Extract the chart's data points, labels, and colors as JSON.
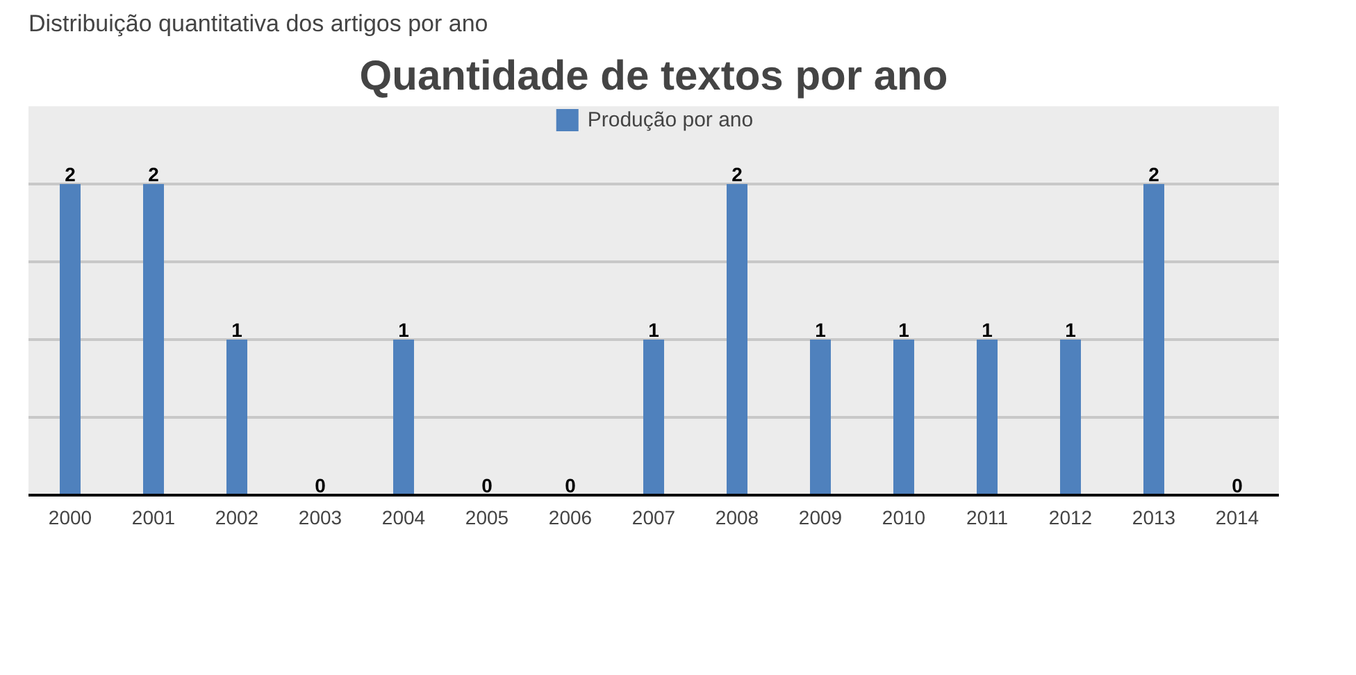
{
  "chart_data": {
    "type": "bar",
    "title": "Quantidade de textos por ano",
    "annotations": [
      "Distribuição quantitativa dos artigos por ano"
    ],
    "categories": [
      "2000",
      "2001",
      "2002",
      "2003",
      "2004",
      "2005",
      "2006",
      "2007",
      "2008",
      "2009",
      "2010",
      "2011",
      "2012",
      "2013",
      "2014"
    ],
    "series": [
      {
        "name": "Produção por ano",
        "color": "#4f81bd",
        "values": [
          2,
          2,
          1,
          0,
          1,
          0,
          0,
          1,
          2,
          1,
          1,
          1,
          1,
          2,
          0
        ]
      }
    ],
    "tick_labels": "x",
    "grid": "y",
    "data_labels": true,
    "legend": "top"
  }
}
